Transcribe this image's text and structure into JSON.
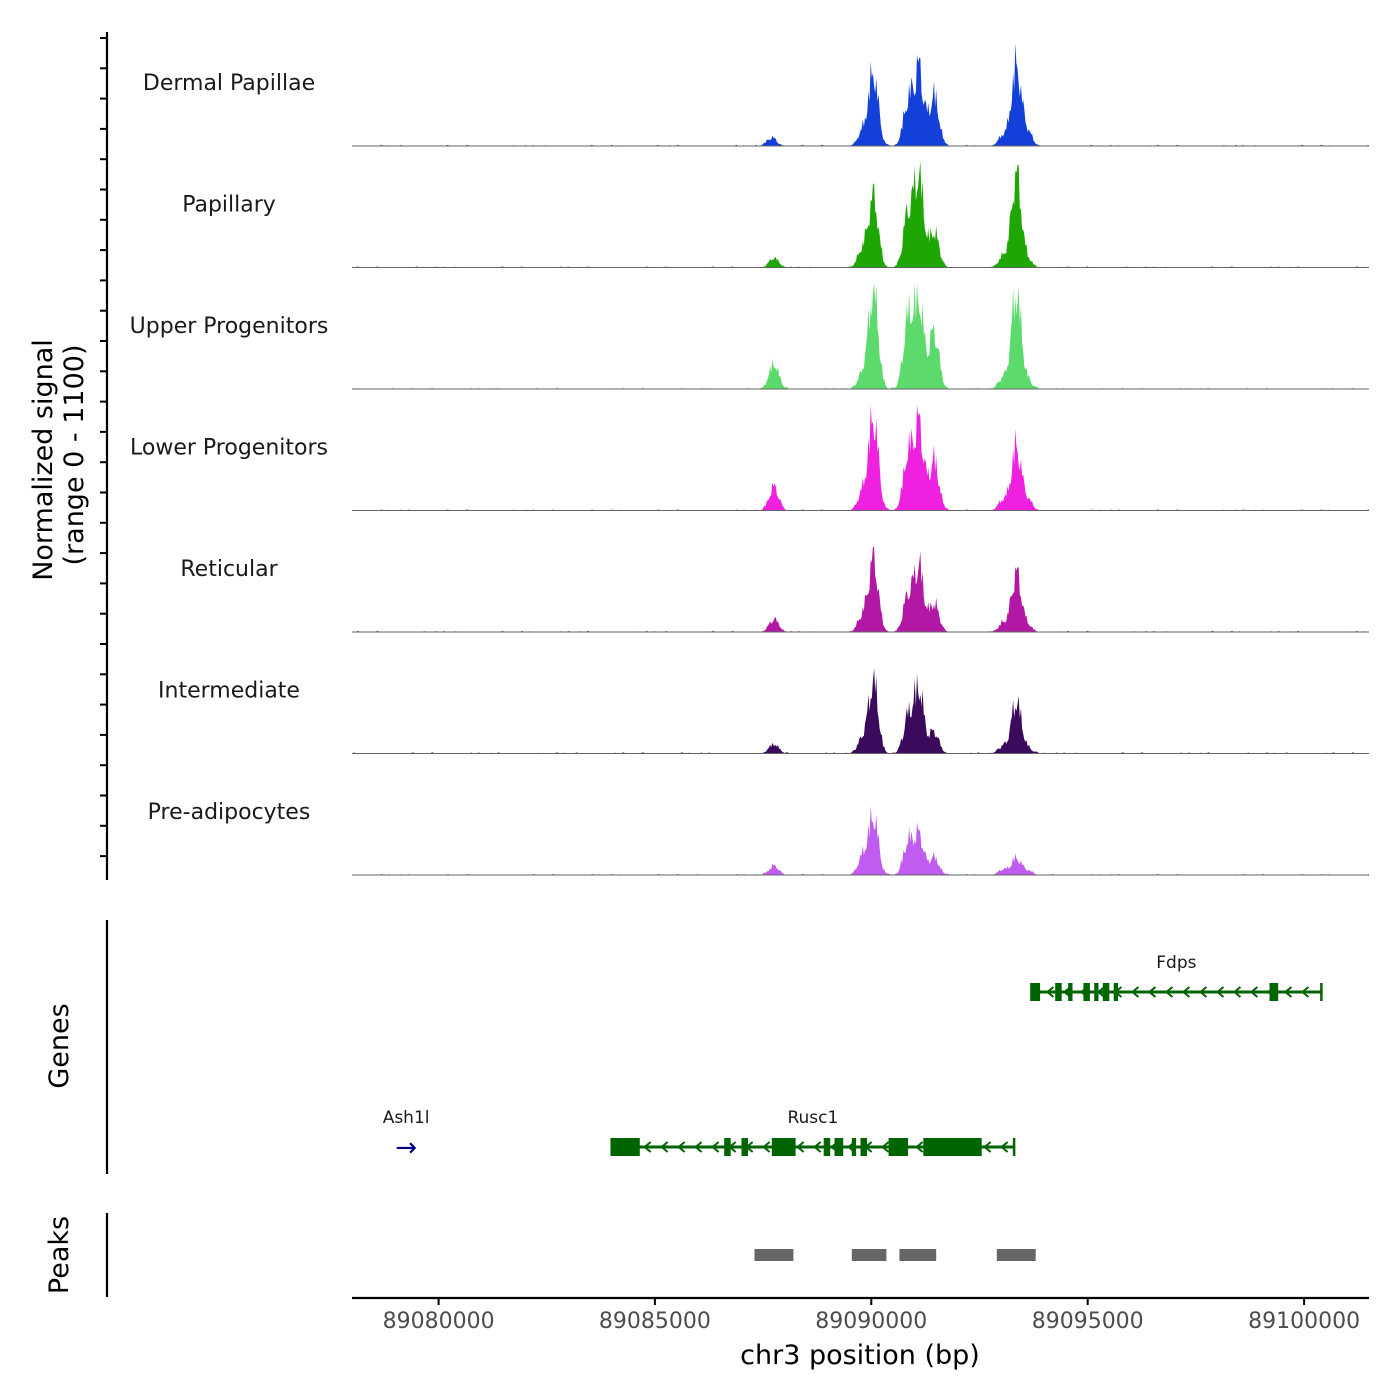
{
  "chart_data": {
    "type": "area",
    "title": "",
    "chromosome": "chr3",
    "xlabel": "chr3 position (bp)",
    "xlim": [
      89078000,
      89101500
    ],
    "xticks": [
      89080000,
      89085000,
      89090000,
      89095000,
      89100000
    ],
    "xtick_labels": [
      "89080000",
      "89085000",
      "89090000",
      "89095000",
      "89100000"
    ],
    "signal_ylabel_line1": "Normalized signal",
    "signal_ylabel_line2": "(range 0 - 1100)",
    "signal_ylim": [
      0,
      1100
    ],
    "tracks": [
      {
        "name": "Dermal Papillae",
        "color": "#1340D9",
        "peaks": [
          [
            89087700,
            120
          ],
          [
            89089800,
            200
          ],
          [
            89090050,
            1000
          ],
          [
            89090850,
            600
          ],
          [
            89091100,
            1050
          ],
          [
            89091450,
            700
          ],
          [
            89093050,
            150
          ],
          [
            89093350,
            1100
          ],
          [
            89093600,
            200
          ]
        ]
      },
      {
        "name": "Papillary",
        "color": "#1EA603",
        "peaks": [
          [
            89087750,
            130
          ],
          [
            89089800,
            250
          ],
          [
            89090050,
            960
          ],
          [
            89090850,
            750
          ],
          [
            89091100,
            1260
          ],
          [
            89091450,
            500
          ],
          [
            89093050,
            150
          ],
          [
            89093350,
            1280
          ],
          [
            89093600,
            120
          ]
        ]
      },
      {
        "name": "Upper Progenitors",
        "color": "#5CDB6C",
        "peaks": [
          [
            89087750,
            350
          ],
          [
            89089800,
            200
          ],
          [
            89090050,
            1380
          ],
          [
            89090850,
            950
          ],
          [
            89091100,
            1200
          ],
          [
            89091450,
            800
          ],
          [
            89093050,
            150
          ],
          [
            89093350,
            1350
          ],
          [
            89093600,
            120
          ]
        ]
      },
      {
        "name": "Lower Progenitors",
        "color": "#F020E0",
        "peaks": [
          [
            89087750,
            330
          ],
          [
            89089800,
            250
          ],
          [
            89090050,
            1290
          ],
          [
            89090850,
            760
          ],
          [
            89091100,
            1170
          ],
          [
            89091450,
            700
          ],
          [
            89093050,
            150
          ],
          [
            89093350,
            880
          ],
          [
            89093600,
            150
          ]
        ]
      },
      {
        "name": "Reticular",
        "color": "#B318A5",
        "peaks": [
          [
            89087750,
            180
          ],
          [
            89089800,
            220
          ],
          [
            89090050,
            990
          ],
          [
            89090850,
            500
          ],
          [
            89091100,
            900
          ],
          [
            89091450,
            400
          ],
          [
            89093050,
            120
          ],
          [
            89093350,
            810
          ],
          [
            89093600,
            100
          ]
        ]
      },
      {
        "name": "Intermediate",
        "color": "#3B0A5C",
        "peaks": [
          [
            89087750,
            130
          ],
          [
            89089800,
            200
          ],
          [
            89090050,
            990
          ],
          [
            89090850,
            500
          ],
          [
            89091100,
            900
          ],
          [
            89091450,
            300
          ],
          [
            89093050,
            100
          ],
          [
            89093350,
            730
          ],
          [
            89093600,
            80
          ]
        ]
      },
      {
        "name": "Pre-adipocytes",
        "color": "#C05CF0",
        "peaks": [
          [
            89087750,
            130
          ],
          [
            89089800,
            250
          ],
          [
            89090050,
            810
          ],
          [
            89090850,
            450
          ],
          [
            89091100,
            550
          ],
          [
            89091450,
            250
          ],
          [
            89093050,
            80
          ],
          [
            89093350,
            230
          ],
          [
            89093600,
            60
          ]
        ]
      }
    ],
    "genes_ylabel": "Genes",
    "genes": [
      {
        "name": "Fdps",
        "strand": "-",
        "color": "#006400",
        "start": 89093700,
        "end": 89100400,
        "row": 0,
        "exons": [
          [
            89093700,
            89093900
          ],
          [
            89094250,
            89094400
          ],
          [
            89094550,
            89094650
          ],
          [
            89094900,
            89095050
          ],
          [
            89095150,
            89095250
          ],
          [
            89095350,
            89095500
          ],
          [
            89095600,
            89095700
          ],
          [
            89099200,
            89099400
          ]
        ]
      },
      {
        "name": "Rusc1",
        "strand": "-",
        "color": "#006400",
        "start": 89084000,
        "end": 89093300,
        "row": 1,
        "exons": [
          [
            89084000,
            89084650
          ],
          [
            89086600,
            89086750
          ],
          [
            89087000,
            89087150
          ],
          [
            89087700,
            89088250
          ],
          [
            89088900,
            89089050
          ],
          [
            89089150,
            89089350
          ],
          [
            89089550,
            89089650
          ],
          [
            89089750,
            89089900
          ],
          [
            89090400,
            89090850
          ],
          [
            89091200,
            89092550
          ]
        ]
      },
      {
        "name": "Ash1l",
        "strand": "+",
        "color": "#00008B",
        "start": 89079000,
        "end": 89079500,
        "row": 1,
        "exons": []
      }
    ],
    "peaks_ylabel": "Peaks",
    "peak_regions": [
      [
        89087300,
        89088200
      ],
      [
        89089550,
        89090350
      ],
      [
        89090650,
        89091500
      ],
      [
        89092900,
        89093800
      ]
    ]
  }
}
